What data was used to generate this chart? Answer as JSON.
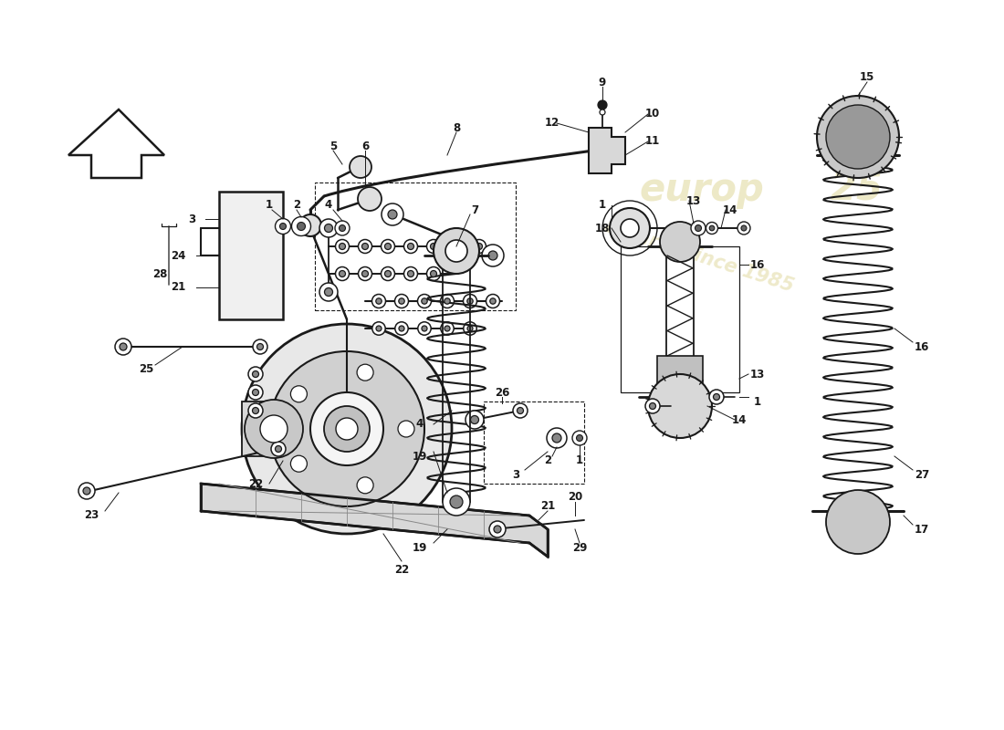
{
  "bg_color": "#ffffff",
  "line_color": "#1a1a1a",
  "watermark_color": "#d4c875",
  "figsize": [
    11.0,
    8.0
  ],
  "dpi": 100,
  "xlim": [
    0,
    110
  ],
  "ylim": [
    0,
    80
  ]
}
